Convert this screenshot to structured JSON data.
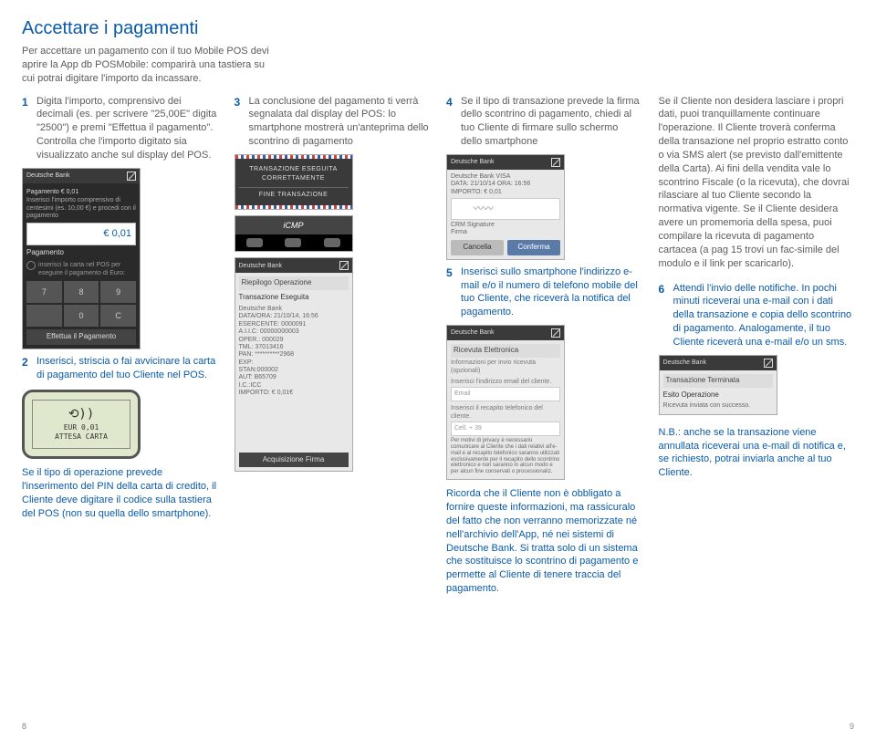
{
  "page_title": "Accettare i pagamenti",
  "intro": "Per accettare un pagamento con il tuo Mobile POS devi aprire la App db POSMobile: comparirà una tastiera su cui potrai digitare l'importo da incassare.",
  "page_left_num": "8",
  "page_right_num": "9",
  "steps": {
    "s1": {
      "num": "1",
      "text": "Digita l'importo, comprensivo dei decimali (es. per scrivere \"25,00E\" digita \"2500\") e premi \"Effettua il pagamento\". Controlla che l'importo digitato sia visualizzato anche sul display del POS."
    },
    "s2": {
      "num": "2",
      "text": "Inserisci, striscia o fai avvicinare la carta di pagamento del tuo Cliente nel POS."
    },
    "s2_extra": "Se il tipo di operazione prevede l'inserimento del PIN della carta di credito, il Cliente deve digitare il codice sulla tastiera del POS (non su quella dello smartphone).",
    "s3": {
      "num": "3",
      "text": "La conclusione del pagamento ti verrà segnalata dal display del POS: lo smartphone mostrerà un'anteprima dello scontrino di pagamento"
    },
    "s4": {
      "num": "4",
      "text": "Se il tipo di transazione prevede la firma dello scontrino di pagamento, chiedi al tuo Cliente di firmare sullo schermo dello smartphone"
    },
    "s5": {
      "num": "5",
      "text": "Inserisci sullo smartphone l'indirizzo e-mail e/o il numero di telefono mobile del tuo Cliente, che riceverà la notifica del pagamento."
    },
    "s5_extra": "Ricorda che il Cliente non è obbligato a fornire queste informazioni, ma rassicuralo del fatto che non verranno memorizzate né nell'archivio dell'App, né nei sistemi di Deutsche Bank. Si tratta solo di un sistema che sostituisce lo scontrino di pagamento e permette al Cliente di tenere traccia del pagamento.",
    "s6": {
      "num": "6",
      "text": "Attendi l'invio delle notifiche. In pochi minuti riceverai una e-mail con i dati della transazione e copia dello scontrino di pagamento. Analogamente, il tuo Cliente riceverà una e-mail e/o un sms."
    },
    "s6_extra": "N.B.: anche se la transazione viene annullata riceverai una e-mail di notifica e, se richiesto, potrai inviarla anche al tuo Cliente."
  },
  "right_text": "Se il Cliente non desidera lasciare i propri dati, puoi tranquillamente continuare l'operazione. Il Cliente troverà conferma della transazione nel proprio estratto conto o via SMS alert (se previsto dall'emittente della Carta). Ai fini della vendita vale lo scontrino Fiscale (o la ricevuta), che dovrai rilasciare al tuo Cliente secondo la normativa vigente. Se il Cliente desidera avere un promemoria della spesa, puoi compilare la ricevuta di pagamento cartacea (a pag 15 trovi un fac-simile del modulo e il link per scaricarlo).",
  "phone1": {
    "brand": "Deutsche Bank",
    "topline": "Pagamento   € 0,01",
    "instr": "Inserisci l'importo comprensivo di centesimi (es. 10,00 €) e procedi con il pagamento",
    "amount": "€ 0,01",
    "section": "Pagamento",
    "desc": "inserisci la carta nel POS per eseguire il pagamento di Euro:",
    "keys": [
      "7",
      "8",
      "9",
      "",
      "0",
      "C"
    ],
    "button": "Effettua il Pagamento"
  },
  "terminal": {
    "icon": "⟲))",
    "line1": "EUR 0,01",
    "line2": "ATTESA CARTA"
  },
  "stripes": {
    "line1": "TRANSAZIONE ESEGUITA",
    "line2": "CORRETTAMENTE",
    "line3": "FINE TRANSAZIONE"
  },
  "icmp_label": "iCMP",
  "phone3": {
    "brand": "Deutsche Bank",
    "title": "Riepilogo Operazione",
    "subtitle": "Transazione Eseguita",
    "merchant": "Deutsche Bank",
    "lines": [
      "DATA/ORA: 21/10/14, 16:56",
      "ESERCENTE: 0000091",
      "A.I.I.C: 00000000003",
      "OPER.: 000029",
      "TML: 37013416",
      "PAN: **********2968",
      "EXP:",
      "STAN:000002",
      "AUT: B65709",
      "I.C.:ICC",
      "IMPORTO: € 0,01€"
    ],
    "button": "Acquisizione Firma"
  },
  "phone4": {
    "brand": "Deutsche Bank",
    "meta": "Deutsche Bank      VISA",
    "meta2": "DATA: 21/10/14   ORA: 16:56   IMPORTO: € 0,01",
    "siglabel": "CRM Signature",
    "siglabel2": "Firma",
    "cancel": "Cancella",
    "confirm": "Conferma"
  },
  "phone5": {
    "brand": "Deutsche Bank",
    "title": "Ricevuta Elettronica",
    "info": "Informazioni per invio ricevuta (opzionali)",
    "email_label": "Inserisci l'indirizzo email del cliente.",
    "email_ph": "Email",
    "phone_label": "Inserisci il recapito telefonico del cliente.",
    "phone_ph": "Cell.  + 39",
    "disclaimer": "Per motivi di privacy è necessario comunicare al Cliente che i dati relativi all'e-mail e al recapito telefonico saranno utilizzati esclusivamente per il recapito dello scontrino elettronico e non saranno in alcun modo e per alcun fine conservati o processionaliz."
  },
  "phone6": {
    "brand": "Deutsche Bank",
    "title": "Transazione Terminata",
    "subtitle": "Esito Operazione",
    "msg": "Ricevuta inviata con successo."
  }
}
